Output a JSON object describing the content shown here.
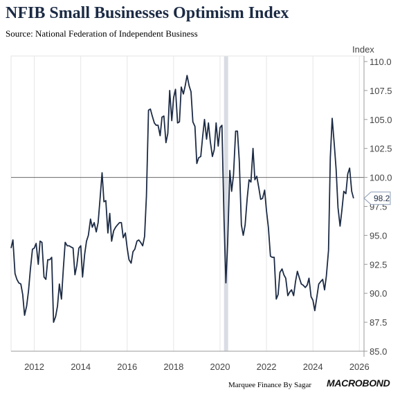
{
  "header": {
    "title": "NFIB Small Businesses Optimism Index",
    "subtitle": "Source: National Federation of Independent Business"
  },
  "footer": {
    "credit": "Marquee Finance By Sagar",
    "brand": "MACROBOND"
  },
  "chart_data": {
    "type": "line",
    "ylabel": "Index",
    "xlim": [
      2011.0,
      2026.2
    ],
    "ylim": [
      85.0,
      110.0
    ],
    "x_ticks": [
      2012,
      2014,
      2016,
      2018,
      2020,
      2022,
      2024,
      2026
    ],
    "y_ticks": [
      "85.0",
      "87.5",
      "90.0",
      "92.5",
      "95.0",
      "97.5",
      "100.0",
      "102.5",
      "105.0",
      "107.5",
      "110.0"
    ],
    "reference_line": 100.0,
    "shaded_period": [
      2020.17,
      2020.25
    ],
    "last_value_label": "98.2",
    "grid": "vertical",
    "colors": {
      "line": "#1b2a44",
      "reference": "#666666",
      "shade": "#d9dde3",
      "grid": "#e6e6e6"
    },
    "series": [
      {
        "x": [
          2011.0,
          2011.08,
          2011.17,
          2011.25,
          2011.33,
          2011.42,
          2011.5,
          2011.58,
          2011.67,
          2011.75,
          2011.83,
          2011.92,
          2012.0,
          2012.08,
          2012.17,
          2012.25,
          2012.33,
          2012.42,
          2012.5,
          2012.58,
          2012.67,
          2012.75,
          2012.83,
          2012.92,
          2013.0,
          2013.08,
          2013.17,
          2013.25,
          2013.33,
          2013.42,
          2013.5,
          2013.58,
          2013.67,
          2013.75,
          2013.83,
          2013.92,
          2014.0,
          2014.08,
          2014.17,
          2014.25,
          2014.33,
          2014.42,
          2014.5,
          2014.58,
          2014.67,
          2014.75,
          2014.83,
          2014.92,
          2015.0,
          2015.08,
          2015.17,
          2015.25,
          2015.33,
          2015.42,
          2015.5,
          2015.58,
          2015.67,
          2015.75,
          2015.83,
          2015.92,
          2016.0,
          2016.08,
          2016.17,
          2016.25,
          2016.33,
          2016.42,
          2016.5,
          2016.58,
          2016.67,
          2016.75,
          2016.83,
          2016.92,
          2017.0,
          2017.08,
          2017.17,
          2017.25,
          2017.33,
          2017.42,
          2017.5,
          2017.58,
          2017.67,
          2017.75,
          2017.83,
          2017.92,
          2018.0,
          2018.08,
          2018.17,
          2018.25,
          2018.33,
          2018.42,
          2018.5,
          2018.58,
          2018.67,
          2018.75,
          2018.83,
          2018.92,
          2019.0,
          2019.08,
          2019.17,
          2019.25,
          2019.33,
          2019.42,
          2019.5,
          2019.58,
          2019.67,
          2019.75,
          2019.83,
          2019.92,
          2020.0,
          2020.08,
          2020.17,
          2020.25,
          2020.33,
          2020.42,
          2020.5,
          2020.58,
          2020.67,
          2020.75,
          2020.83,
          2020.92,
          2021.0,
          2021.08,
          2021.17,
          2021.25,
          2021.33,
          2021.42,
          2021.5,
          2021.58,
          2021.67,
          2021.75,
          2021.83,
          2021.92,
          2022.0,
          2022.08,
          2022.17,
          2022.25,
          2022.33,
          2022.42,
          2022.5,
          2022.58,
          2022.67,
          2022.75,
          2022.83,
          2022.92,
          2023.0,
          2023.08,
          2023.17,
          2023.25,
          2023.33,
          2023.42,
          2023.5,
          2023.58,
          2023.67,
          2023.75,
          2023.83,
          2023.92,
          2024.0,
          2024.08,
          2024.17,
          2024.25,
          2024.33,
          2024.42,
          2024.5,
          2024.58,
          2024.67,
          2024.75,
          2024.83,
          2024.92,
          2025.0,
          2025.08,
          2025.17,
          2025.25,
          2025.33,
          2025.42,
          2025.5,
          2025.58,
          2025.67,
          2025.75
        ],
        "y": [
          93.9,
          94.6,
          91.7,
          91.2,
          90.9,
          90.8,
          89.9,
          88.1,
          88.9,
          90.2,
          92.0,
          93.8,
          93.9,
          94.3,
          92.5,
          94.5,
          94.4,
          91.4,
          91.2,
          92.9,
          92.9,
          93.1,
          87.5,
          88.0,
          88.9,
          90.8,
          89.5,
          92.1,
          94.4,
          94.1,
          94.1,
          94.0,
          93.9,
          91.6,
          92.4,
          93.9,
          94.1,
          91.4,
          93.4,
          94.5,
          95.0,
          96.4,
          95.7,
          96.1,
          95.3,
          96.1,
          98.1,
          100.4,
          97.9,
          98.0,
          95.2,
          96.9,
          94.5,
          95.4,
          95.7,
          95.9,
          96.1,
          96.1,
          94.8,
          95.2,
          93.9,
          92.9,
          92.6,
          93.6,
          93.8,
          94.5,
          94.6,
          94.4,
          94.1,
          94.9,
          98.4,
          105.8,
          105.9,
          105.3,
          104.7,
          104.5,
          104.5,
          103.6,
          105.2,
          105.3,
          103.0,
          103.8,
          107.5,
          104.9,
          106.9,
          107.6,
          104.7,
          104.8,
          107.8,
          107.2,
          107.9,
          108.8,
          107.9,
          107.4,
          104.8,
          104.4,
          101.2,
          101.7,
          101.8,
          103.5,
          105.0,
          103.3,
          104.7,
          103.1,
          101.8,
          102.4,
          104.7,
          102.7,
          104.3,
          104.5,
          96.4,
          90.9,
          94.4,
          100.6,
          98.8,
          100.2,
          104.0,
          104.0,
          101.4,
          95.9,
          95.0,
          95.9,
          98.2,
          99.8,
          99.6,
          102.5,
          99.8,
          100.1,
          99.1,
          98.1,
          98.2,
          98.9,
          97.1,
          95.7,
          93.2,
          93.1,
          93.1,
          89.5,
          89.9,
          91.8,
          92.1,
          91.6,
          91.3,
          89.8,
          90.1,
          90.3,
          89.8,
          91.0,
          91.9,
          91.3,
          90.8,
          90.7,
          90.5,
          90.7,
          91.3,
          89.7,
          89.4,
          88.5,
          89.7,
          90.8,
          91.0,
          91.2,
          90.3,
          91.5,
          93.7,
          101.7,
          105.1,
          102.8,
          100.7,
          97.4,
          95.8,
          97.2,
          98.8,
          98.6,
          100.3,
          100.8,
          98.8,
          98.2
        ]
      }
    ]
  }
}
